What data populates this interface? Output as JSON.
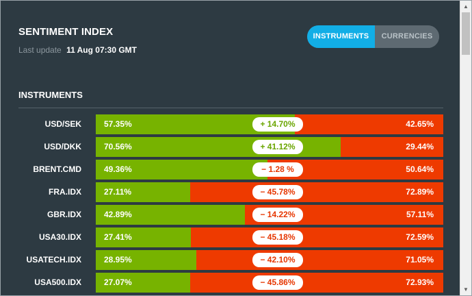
{
  "header": {
    "title": "SENTIMENT INDEX",
    "last_update_label": "Last update",
    "last_update_value": "11 Aug 07:30 GMT"
  },
  "toggle": {
    "instruments_label": "INSTRUMENTS",
    "currencies_label": "CURRENCIES",
    "selected": "INSTRUMENTS"
  },
  "section_title": "INSTRUMENTS",
  "rows": [
    {
      "name": "USD/SEK",
      "long": 57.35,
      "long_label": "57.35%",
      "short_label": "42.65%",
      "diff": "+ 14.70%",
      "sign": "pos"
    },
    {
      "name": "USD/DKK",
      "long": 70.56,
      "long_label": "70.56%",
      "short_label": "29.44%",
      "diff": "+ 41.12%",
      "sign": "pos"
    },
    {
      "name": "BRENT.CMD",
      "long": 49.36,
      "long_label": "49.36%",
      "short_label": "50.64%",
      "diff": "− 1.28 %",
      "sign": "neg"
    },
    {
      "name": "FRA.IDX",
      "long": 27.11,
      "long_label": "27.11%",
      "short_label": "72.89%",
      "diff": "− 45.78%",
      "sign": "neg"
    },
    {
      "name": "GBR.IDX",
      "long": 42.89,
      "long_label": "42.89%",
      "short_label": "57.11%",
      "diff": "− 14.22%",
      "sign": "neg"
    },
    {
      "name": "USA30.IDX",
      "long": 27.41,
      "long_label": "27.41%",
      "short_label": "72.59%",
      "diff": "− 45.18%",
      "sign": "neg"
    },
    {
      "name": "USATECH.IDX",
      "long": 28.95,
      "long_label": "28.95%",
      "short_label": "71.05%",
      "diff": "− 42.10%",
      "sign": "neg"
    },
    {
      "name": "USA500.IDX",
      "long": 27.07,
      "long_label": "27.07%",
      "short_label": "72.93%",
      "diff": "− 45.86%",
      "sign": "neg"
    }
  ],
  "colors": {
    "background": "#2d3a42",
    "long": "#77b300",
    "short": "#ee3a00",
    "accent": "#12aee6"
  },
  "icons": {
    "scroll_up": "arrow-up-icon",
    "scroll_down": "arrow-down-icon"
  }
}
